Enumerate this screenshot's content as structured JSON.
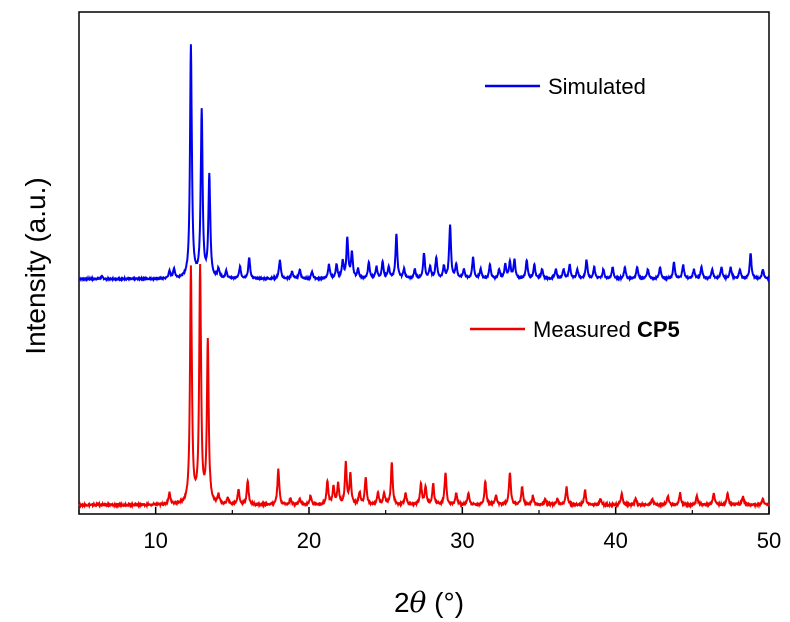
{
  "chart_data": {
    "type": "line",
    "xlabel_prefix": "2",
    "xlabel_symbol": "θ",
    "xlabel_unit": " (°)",
    "ylabel": "Intensity (a.u.)",
    "xlim": [
      5,
      50
    ],
    "xticks": [
      10,
      20,
      30,
      40,
      50
    ],
    "y_ticks_shown": false,
    "grid": false,
    "legend_position": "right",
    "series": [
      {
        "name": "Simulated",
        "color": "#0000ee",
        "baseline": 0.0,
        "peaks": [
          [
            6.5,
            0.01
          ],
          [
            10.9,
            0.03
          ],
          [
            11.2,
            0.04
          ],
          [
            12.3,
            1.0
          ],
          [
            13.0,
            0.72
          ],
          [
            13.5,
            0.44
          ],
          [
            14.1,
            0.04
          ],
          [
            14.6,
            0.03
          ],
          [
            15.5,
            0.05
          ],
          [
            16.1,
            0.09
          ],
          [
            18.1,
            0.08
          ],
          [
            18.9,
            0.03
          ],
          [
            19.4,
            0.04
          ],
          [
            20.2,
            0.03
          ],
          [
            21.3,
            0.06
          ],
          [
            21.8,
            0.06
          ],
          [
            22.2,
            0.07
          ],
          [
            22.5,
            0.17
          ],
          [
            22.8,
            0.11
          ],
          [
            23.2,
            0.04
          ],
          [
            23.9,
            0.07
          ],
          [
            24.4,
            0.05
          ],
          [
            24.8,
            0.07
          ],
          [
            25.2,
            0.05
          ],
          [
            25.7,
            0.19
          ],
          [
            26.2,
            0.04
          ],
          [
            26.9,
            0.04
          ],
          [
            27.5,
            0.11
          ],
          [
            27.9,
            0.05
          ],
          [
            28.3,
            0.09
          ],
          [
            28.8,
            0.05
          ],
          [
            29.2,
            0.23
          ],
          [
            29.6,
            0.06
          ],
          [
            30.1,
            0.04
          ],
          [
            30.7,
            0.09
          ],
          [
            31.2,
            0.04
          ],
          [
            31.8,
            0.06
          ],
          [
            32.4,
            0.04
          ],
          [
            32.8,
            0.06
          ],
          [
            33.1,
            0.07
          ],
          [
            33.4,
            0.08
          ],
          [
            34.2,
            0.08
          ],
          [
            34.7,
            0.06
          ],
          [
            35.2,
            0.04
          ],
          [
            36.1,
            0.04
          ],
          [
            36.6,
            0.04
          ],
          [
            37.0,
            0.06
          ],
          [
            37.5,
            0.04
          ],
          [
            38.1,
            0.08
          ],
          [
            38.6,
            0.05
          ],
          [
            39.2,
            0.04
          ],
          [
            39.8,
            0.05
          ],
          [
            40.6,
            0.05
          ],
          [
            41.4,
            0.05
          ],
          [
            42.1,
            0.04
          ],
          [
            42.9,
            0.05
          ],
          [
            43.8,
            0.07
          ],
          [
            44.4,
            0.06
          ],
          [
            45.1,
            0.04
          ],
          [
            45.6,
            0.05
          ],
          [
            46.3,
            0.04
          ],
          [
            46.9,
            0.05
          ],
          [
            47.5,
            0.05
          ],
          [
            48.1,
            0.04
          ],
          [
            48.8,
            0.11
          ],
          [
            49.6,
            0.04
          ]
        ]
      },
      {
        "name": "Measured ",
        "name_bold": "CP5",
        "color": "#ee0000",
        "baseline": 0.0,
        "peaks": [
          [
            10.9,
            0.04
          ],
          [
            12.3,
            0.8
          ],
          [
            12.9,
            0.8
          ],
          [
            13.4,
            0.55
          ],
          [
            14.1,
            0.03
          ],
          [
            14.7,
            0.02
          ],
          [
            15.4,
            0.05
          ],
          [
            16.0,
            0.08
          ],
          [
            18.0,
            0.12
          ],
          [
            18.8,
            0.02
          ],
          [
            19.4,
            0.02
          ],
          [
            20.1,
            0.03
          ],
          [
            21.2,
            0.08
          ],
          [
            21.6,
            0.06
          ],
          [
            21.9,
            0.07
          ],
          [
            22.4,
            0.14
          ],
          [
            22.7,
            0.1
          ],
          [
            23.3,
            0.04
          ],
          [
            23.7,
            0.09
          ],
          [
            24.5,
            0.04
          ],
          [
            24.9,
            0.04
          ],
          [
            25.4,
            0.14
          ],
          [
            26.3,
            0.04
          ],
          [
            27.3,
            0.07
          ],
          [
            27.6,
            0.06
          ],
          [
            28.1,
            0.07
          ],
          [
            28.9,
            0.11
          ],
          [
            29.6,
            0.04
          ],
          [
            30.4,
            0.04
          ],
          [
            31.5,
            0.08
          ],
          [
            32.2,
            0.03
          ],
          [
            33.1,
            0.11
          ],
          [
            33.9,
            0.06
          ],
          [
            34.6,
            0.03
          ],
          [
            35.4,
            0.02
          ],
          [
            36.2,
            0.02
          ],
          [
            36.8,
            0.06
          ],
          [
            38.0,
            0.05
          ],
          [
            39.0,
            0.02
          ],
          [
            40.4,
            0.04
          ],
          [
            41.3,
            0.02
          ],
          [
            42.4,
            0.02
          ],
          [
            43.4,
            0.03
          ],
          [
            44.2,
            0.04
          ],
          [
            45.3,
            0.03
          ],
          [
            46.4,
            0.04
          ],
          [
            47.3,
            0.04
          ],
          [
            48.3,
            0.03
          ],
          [
            49.6,
            0.02
          ]
        ]
      }
    ]
  }
}
